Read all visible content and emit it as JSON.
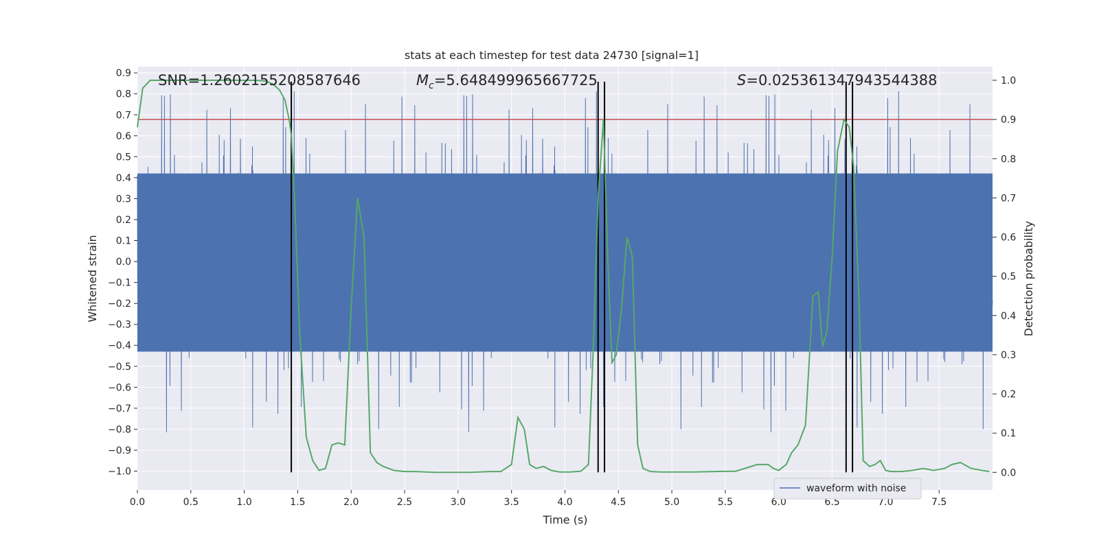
{
  "chart_data": {
    "type": "line",
    "title": "stats at each timestep for test data 24730 [signal=1]",
    "xlabel": "Time (s)",
    "ylabel_left": "Whitened strain",
    "ylabel_right": "Detection probability",
    "xlim": [
      0.0,
      8.0
    ],
    "ylim_left": [
      -1.09,
      0.93
    ],
    "ylim_right": [
      -0.045,
      1.035
    ],
    "x_ticks": [
      "0.0",
      "0.5",
      "1.0",
      "1.5",
      "2.0",
      "2.5",
      "3.0",
      "3.5",
      "4.0",
      "4.5",
      "5.0",
      "5.5",
      "6.0",
      "6.5",
      "7.0",
      "7.5"
    ],
    "y_ticks_left": [
      "0.9",
      "0.8",
      "0.7",
      "0.6",
      "0.5",
      "0.4",
      "0.3",
      "0.2",
      "0.1",
      "0.0",
      "-0.1",
      "-0.2",
      "-0.3",
      "-0.4",
      "-0.5",
      "-0.6",
      "-0.7",
      "-0.8",
      "-0.9",
      "-1.0"
    ],
    "y_ticks_right": [
      "1.0",
      "0.9",
      "0.8",
      "0.7",
      "0.6",
      "0.5",
      "0.4",
      "0.3",
      "0.2",
      "0.1",
      "0.0"
    ],
    "grid": true,
    "legend": {
      "placement": "lower-right",
      "entries": [
        "waveform with noise"
      ]
    },
    "annotations": {
      "snr": "SNR=1.2602155208587646",
      "mc_symbol": "M",
      "mc_sub": "c",
      "mc_value": "=5.648499965667725",
      "s_symbol": "S",
      "s_value": "=0.025361347943544388"
    },
    "threshold": {
      "value": 0.9,
      "axis": "right"
    },
    "vlines_x": [
      1.44,
      4.31,
      4.37,
      6.63,
      6.69
    ],
    "colors": {
      "waveform": "#4c72b0",
      "probability": "#55a868",
      "threshold": "#c44e52",
      "vline": "#000000",
      "axes_bg": "#eaeaf2",
      "grid": "#ffffff"
    },
    "series": [
      {
        "name": "waveform with noise",
        "axis": "left",
        "style": "dense-noise",
        "time_range": [
          0.0,
          8.0
        ],
        "core_band": [
          -0.43,
          0.42
        ],
        "approx_extremes": [
          -1.0,
          0.87
        ]
      },
      {
        "axis": "right",
        "x": [
          0.0,
          0.05,
          0.12,
          0.2,
          0.4,
          0.6,
          0.8,
          1.0,
          1.1,
          1.2,
          1.27,
          1.33,
          1.38,
          1.42,
          1.44,
          1.47,
          1.52,
          1.58,
          1.64,
          1.7,
          1.76,
          1.82,
          1.88,
          1.94,
          2.0,
          2.06,
          2.12,
          2.18,
          2.24,
          2.3,
          2.4,
          2.5,
          2.6,
          2.7,
          2.8,
          2.9,
          3.0,
          3.1,
          3.2,
          3.3,
          3.4,
          3.5,
          3.56,
          3.62,
          3.67,
          3.73,
          3.8,
          3.87,
          3.95,
          4.05,
          4.15,
          4.22,
          4.27,
          4.31,
          4.36,
          4.4,
          4.44,
          4.48,
          4.53,
          4.58,
          4.63,
          4.68,
          4.73,
          4.8,
          4.9,
          5.0,
          5.2,
          5.4,
          5.6,
          5.8,
          5.9,
          5.95,
          6.0,
          6.07,
          6.12,
          6.18,
          6.25,
          6.32,
          6.37,
          6.41,
          6.45,
          6.5,
          6.55,
          6.61,
          6.66,
          6.7,
          6.75,
          6.79,
          6.85,
          6.9,
          6.95,
          7.0,
          7.05,
          7.15,
          7.25,
          7.35,
          7.45,
          7.55,
          7.62,
          7.7,
          7.8,
          7.9,
          7.97
        ],
        "y": [
          0.88,
          0.98,
          1.0,
          1.0,
          1.0,
          1.0,
          1.0,
          1.0,
          1.0,
          0.998,
          0.99,
          0.975,
          0.95,
          0.9,
          0.86,
          0.7,
          0.35,
          0.09,
          0.03,
          0.005,
          0.01,
          0.07,
          0.075,
          0.07,
          0.42,
          0.7,
          0.6,
          0.05,
          0.025,
          0.015,
          0.005,
          0.002,
          0.002,
          0.001,
          0.0,
          0.0,
          0.0,
          0.0,
          0.001,
          0.002,
          0.002,
          0.02,
          0.14,
          0.11,
          0.02,
          0.01,
          0.015,
          0.005,
          0.001,
          0.001,
          0.003,
          0.02,
          0.35,
          0.7,
          0.9,
          0.55,
          0.28,
          0.3,
          0.42,
          0.6,
          0.55,
          0.07,
          0.01,
          0.002,
          0.001,
          0.001,
          0.001,
          0.002,
          0.003,
          0.02,
          0.02,
          0.01,
          0.005,
          0.02,
          0.05,
          0.07,
          0.12,
          0.45,
          0.46,
          0.32,
          0.36,
          0.55,
          0.82,
          0.9,
          0.88,
          0.78,
          0.45,
          0.03,
          0.015,
          0.02,
          0.03,
          0.005,
          0.002,
          0.002,
          0.005,
          0.01,
          0.005,
          0.01,
          0.02,
          0.025,
          0.01,
          0.005,
          0.002
        ]
      }
    ]
  }
}
